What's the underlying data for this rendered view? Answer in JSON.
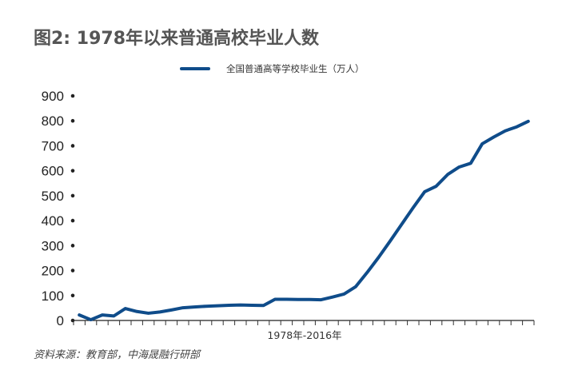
{
  "title": "图2: 1978年以来普通高校毕业人数",
  "source": "资料来源：教育部，中海晟融行研部",
  "chart_data": {
    "type": "line",
    "title": "图2: 1978年以来普通高校毕业人数",
    "xlabel": "1978年-2016年",
    "ylabel": "",
    "ylim": [
      0,
      900
    ],
    "yticks": [
      "0",
      "100",
      "200",
      "300",
      "400",
      "500",
      "600",
      "700",
      "800",
      "900"
    ],
    "grid": false,
    "legend_position": "top-center",
    "color": "#0f4c8a",
    "series": [
      {
        "name": "全国普通高等学校毕业生（万人）",
        "values": [
          22,
          3,
          22,
          18,
          48,
          36,
          29,
          34,
          42,
          51,
          54,
          57,
          59,
          61,
          62,
          61,
          60,
          85,
          85,
          84,
          84,
          83,
          94,
          106,
          135,
          192,
          253,
          318,
          385,
          452,
          516,
          538,
          585,
          615,
          630,
          708,
          735,
          760,
          776,
          798
        ]
      }
    ]
  }
}
